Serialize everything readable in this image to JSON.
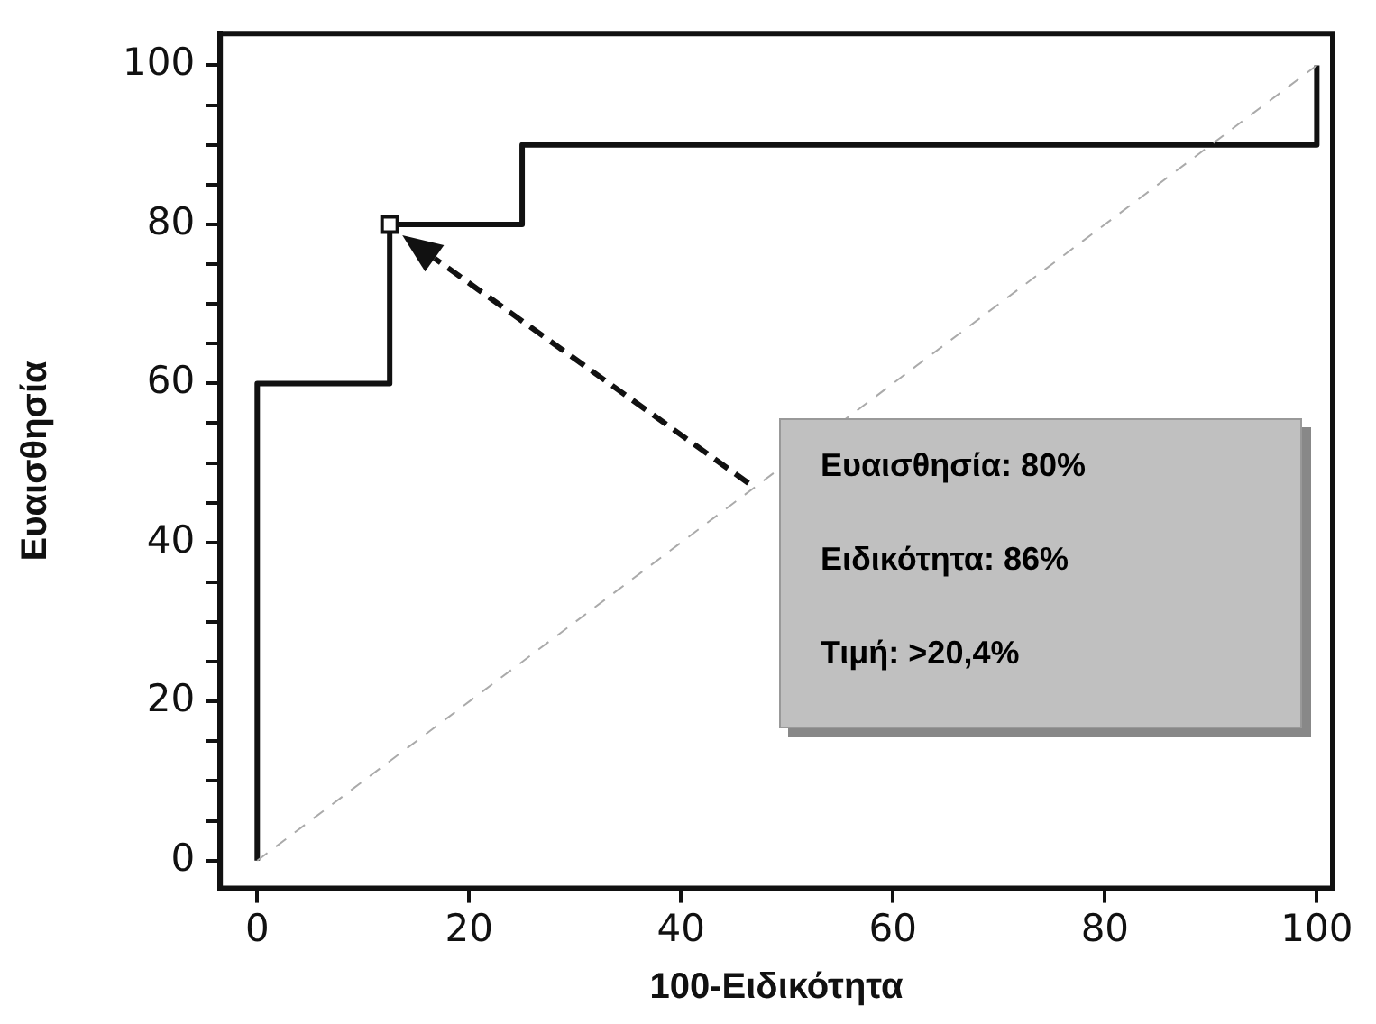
{
  "chart_data": {
    "type": "line",
    "xlabel": "100-Ειδικότητα",
    "ylabel": "Ευαισθησία",
    "xlim": [
      -3.5,
      101.5
    ],
    "ylim": [
      -3.5,
      104
    ],
    "xticks": [
      0,
      20,
      40,
      60,
      80,
      100
    ],
    "yticks": [
      0,
      {
        "value": 5,
        "label": null
      },
      {
        "value": 10,
        "label": null
      },
      {
        "value": 15,
        "label": null
      },
      20,
      {
        "value": 25,
        "label": null
      },
      {
        "value": 30,
        "label": null
      },
      {
        "value": 35,
        "label": null
      },
      40,
      {
        "value": 45,
        "label": null
      },
      {
        "value": 50,
        "label": null
      },
      {
        "value": 55,
        "label": null
      },
      60,
      {
        "value": 65,
        "label": null
      },
      {
        "value": 70,
        "label": null
      },
      {
        "value": 75,
        "label": null
      },
      80,
      {
        "value": 85,
        "label": null
      },
      {
        "value": 90,
        "label": null
      },
      {
        "value": 95,
        "label": null
      },
      100
    ],
    "grid": false,
    "legend": false,
    "series": [
      {
        "color": "#aaaaaa",
        "line_style": "dashed",
        "marker": "none",
        "x": [
          0,
          100
        ],
        "values": [
          0,
          100
        ]
      },
      {
        "color": "#111111",
        "line_style": "solid",
        "marker": "none",
        "x": [
          0,
          0,
          12.5,
          12.5,
          25,
          25,
          100,
          100
        ],
        "values": [
          0,
          60,
          60,
          80,
          80,
          90,
          90,
          100
        ]
      },
      {
        "type": "scatter",
        "color": "#111111",
        "marker": "square",
        "x": [
          12.5
        ],
        "values": [
          80
        ]
      }
    ],
    "annotations": [
      "Ευαισθησία: 80%",
      "Ειδικότητα: 86%",
      "Τιμή: >20,4%"
    ]
  }
}
